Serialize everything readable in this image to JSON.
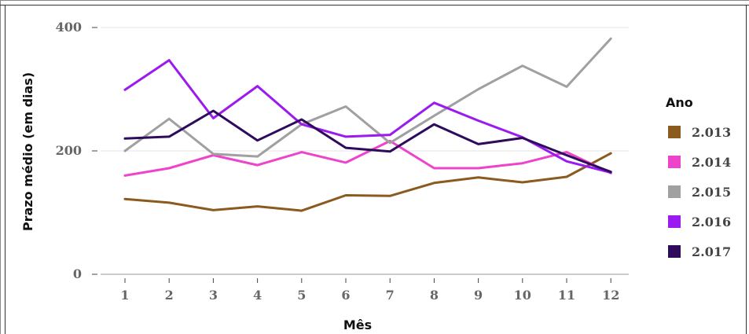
{
  "chart_data": {
    "type": "line",
    "xlabel": "Mês",
    "ylabel": "Prazo médio (em dias)",
    "x": [
      1,
      2,
      3,
      4,
      5,
      6,
      7,
      8,
      9,
      10,
      11,
      12
    ],
    "x_tick_labels": [
      "1",
      "2",
      "3",
      "4",
      "5",
      "6",
      "7",
      "8",
      "9",
      "10",
      "11",
      "12"
    ],
    "ylim": [
      0,
      400
    ],
    "y_ticks": [
      0,
      200,
      400
    ],
    "y_tick_labels": [
      "0",
      "200",
      "400"
    ],
    "grid": true,
    "legend": {
      "title": "Ano",
      "placement": "right"
    },
    "series": [
      {
        "name": "2.013",
        "color": "#8B5A1E",
        "values": [
          122,
          116,
          104,
          110,
          103,
          128,
          127,
          148,
          157,
          149,
          158,
          196
        ]
      },
      {
        "name": "2.014",
        "color": "#EE44CC",
        "values": [
          160,
          172,
          193,
          177,
          198,
          181,
          216,
          172,
          172,
          180,
          198,
          164
        ]
      },
      {
        "name": "2.015",
        "color": "#A0A0A0",
        "values": [
          200,
          252,
          195,
          191,
          243,
          272,
          213,
          257,
          300,
          338,
          304,
          382
        ]
      },
      {
        "name": "2.016",
        "color": "#9A1AF0",
        "values": [
          299,
          347,
          253,
          305,
          243,
          223,
          226,
          278,
          249,
          222,
          183,
          165
        ]
      },
      {
        "name": "2.017",
        "color": "#2E0B5C",
        "values": [
          220,
          223,
          265,
          217,
          251,
          205,
          199,
          243,
          211,
          221,
          193,
          166
        ]
      }
    ]
  }
}
